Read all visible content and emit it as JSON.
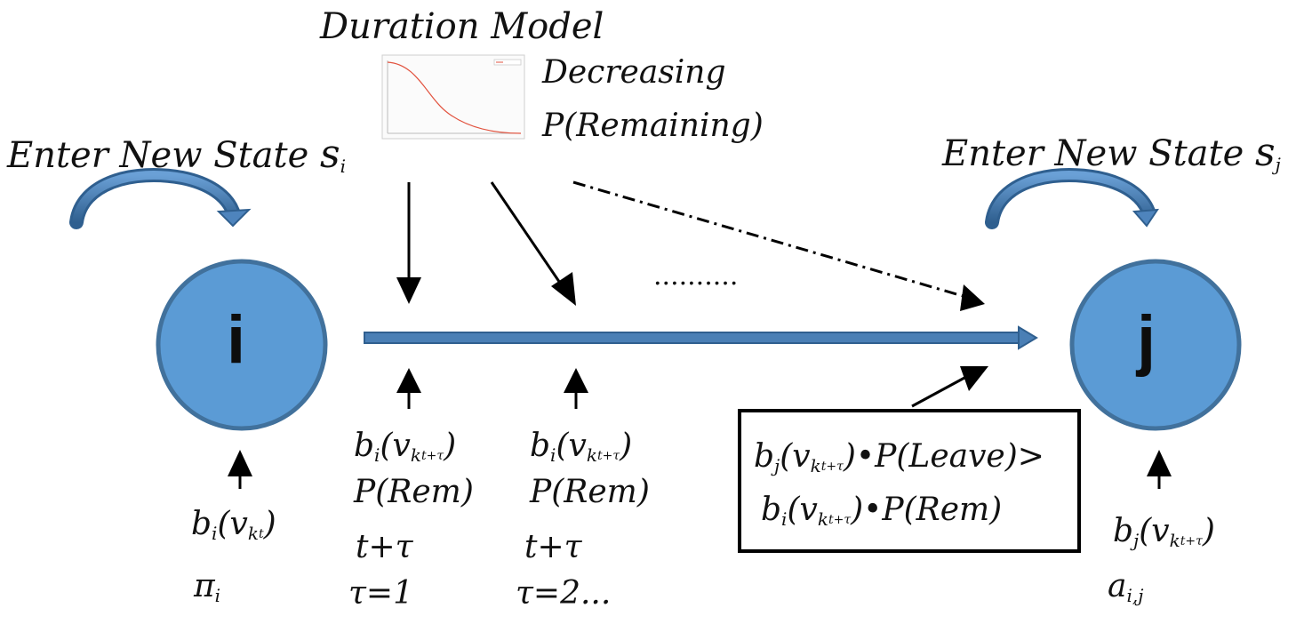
{
  "title": "Duration Model",
  "duration_note": {
    "line1": "Decreasing",
    "line2": "P(Remaining)"
  },
  "states": {
    "i": {
      "node_label": "i",
      "enter_text": "Enter New State",
      "state_symbol": "s",
      "state_sub": "i"
    },
    "j": {
      "node_label": "j",
      "enter_text": "Enter New State",
      "state_symbol": "s",
      "state_sub": "j"
    }
  },
  "ellipsis": "..........",
  "col_i": {
    "emission": "bi(vkt)",
    "b": "b",
    "i": "i",
    "v": "(v",
    "k": "k",
    "t": "t",
    "close": ")",
    "prior": "π",
    "prior_sub": "i"
  },
  "col_tau1": {
    "b": "b",
    "i": "i",
    "v": "(v",
    "k": "k",
    "t": "t+τ",
    "close": ")",
    "prem": "P(Rem)",
    "time": "t+τ",
    "tau": "τ=1"
  },
  "col_tau2": {
    "b": "b",
    "i": "i",
    "v": "(v",
    "k": "k",
    "t": "t+τ",
    "close": ")",
    "prem": "P(Rem)",
    "time": "t+τ",
    "tau": "τ=2..."
  },
  "decision_box": {
    "line1_b": "b",
    "line1_j": "j",
    "line1_v": "(v",
    "line1_k": "k",
    "line1_t": "t+τ",
    "line1_tail": ")•P(Leave)>",
    "line2_b": "b",
    "line2_i": "i",
    "line2_v": "(v",
    "line2_k": "k",
    "line2_t": "t+τ",
    "line2_tail": ")•P(Rem)"
  },
  "col_j": {
    "b": "b",
    "j": "j",
    "v": "(v",
    "k": "k",
    "t": "t+τ",
    "close": ")",
    "transition": "a",
    "transition_sub": "i,j"
  },
  "colors": {
    "node_fill": "#5b9bd5",
    "node_stroke": "#41719c",
    "arrow_blue": "#4a7fb5",
    "curl": "#4e84bd"
  }
}
